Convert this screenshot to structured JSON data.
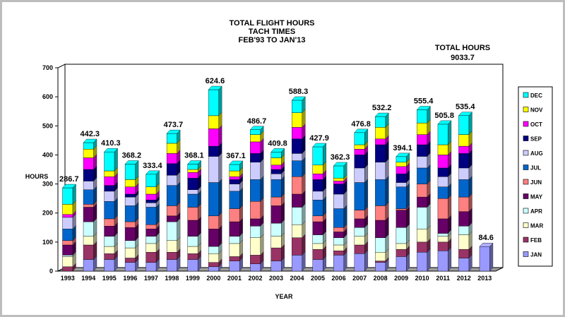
{
  "chart_data": {
    "type": "bar",
    "stacked": true,
    "title": [
      "TOTAL FLIGHT HOURS",
      "TACH TIMES",
      "FEB'93  TO JAN'13"
    ],
    "xlabel": "YEAR",
    "ylabel": "HOURS",
    "ylim": [
      0,
      700
    ],
    "yticks": [
      "0",
      "100",
      "200",
      "300",
      "400",
      "500",
      "600",
      "700"
    ],
    "grid": false,
    "legend_position": "right",
    "annotation": {
      "label": "TOTAL HOURS",
      "value": "9033.7"
    },
    "categories": [
      "1993",
      "1994",
      "1995",
      "1996",
      "1997",
      "1998",
      "1999",
      "2000",
      "2001",
      "2002",
      "2003",
      "2004",
      "2005",
      "2006",
      "2007",
      "2008",
      "2009",
      "2010",
      "2011",
      "2012",
      "2013"
    ],
    "totals": [
      "286.7",
      "442.3",
      "410.3",
      "368.2",
      "333.4",
      "473.7",
      "368.1",
      "624.6",
      "367.1",
      "486.7",
      "409.8",
      "588.3",
      "427.9",
      "362.3",
      "476.8",
      "532.2",
      "394.1",
      "555.4",
      "505.8",
      "535.4",
      "84.6"
    ],
    "series": [
      {
        "name": "JAN",
        "color": "#9999ff",
        "values": [
          0,
          40,
          40,
          30,
          30,
          40,
          40,
          15,
          35,
          25,
          35,
          55,
          40,
          55,
          60,
          30,
          50,
          65,
          70,
          45,
          84.6
        ]
      },
      {
        "name": "FEB",
        "color": "#993366",
        "values": [
          15,
          50,
          20,
          15,
          35,
          25,
          20,
          15,
          15,
          30,
          45,
          60,
          35,
          15,
          30,
          5,
          25,
          35,
          30,
          30,
          0
        ]
      },
      {
        "name": "MAR",
        "color": "#ffffcc",
        "values": [
          35,
          30,
          25,
          35,
          30,
          40,
          25,
          30,
          45,
          60,
          40,
          45,
          20,
          20,
          30,
          30,
          20,
          45,
          20,
          50,
          0
        ]
      },
      {
        "name": "APR",
        "color": "#ccffff",
        "values": [
          5,
          50,
          35,
          25,
          25,
          65,
          35,
          25,
          25,
          40,
          45,
          60,
          30,
          25,
          30,
          50,
          55,
          75,
          10,
          30,
          0
        ]
      },
      {
        "name": "MAY",
        "color": "#660066",
        "values": [
          35,
          50,
          35,
          45,
          25,
          20,
          55,
          60,
          50,
          25,
          60,
          45,
          45,
          20,
          30,
          60,
          60,
          35,
          50,
          50,
          0
        ]
      },
      {
        "name": "JUN",
        "color": "#ff8080",
        "values": [
          15,
          10,
          25,
          20,
          15,
          35,
          45,
          45,
          45,
          60,
          30,
          60,
          20,
          15,
          30,
          50,
          5,
          45,
          70,
          50,
          0
        ]
      },
      {
        "name": "JUL",
        "color": "#0066cc",
        "values": [
          40,
          50,
          60,
          55,
          60,
          70,
          45,
          115,
          60,
          75,
          60,
          55,
          55,
          65,
          95,
          90,
          75,
          55,
          40,
          60,
          0
        ]
      },
      {
        "name": "AUG",
        "color": "#ccccff",
        "values": [
          40,
          30,
          35,
          30,
          15,
          35,
          15,
          90,
          25,
          60,
          20,
          25,
          30,
          50,
          50,
          60,
          15,
          40,
          35,
          40,
          0
        ]
      },
      {
        "name": "SEP",
        "color": "#000080",
        "values": [
          0,
          40,
          20,
          10,
          10,
          40,
          40,
          35,
          15,
          30,
          15,
          50,
          40,
          35,
          45,
          60,
          30,
          40,
          30,
          50,
          0
        ]
      },
      {
        "name": "OCT",
        "color": "#ff00ff",
        "values": [
          10,
          40,
          30,
          25,
          20,
          35,
          20,
          60,
          10,
          40,
          15,
          40,
          20,
          10,
          20,
          20,
          25,
          35,
          45,
          25,
          0
        ]
      },
      {
        "name": "NOV",
        "color": "#ffff00",
        "values": [
          35,
          30,
          20,
          25,
          25,
          35,
          10,
          45,
          20,
          25,
          25,
          50,
          30,
          10,
          15,
          40,
          15,
          40,
          35,
          40,
          0
        ]
      },
      {
        "name": "DEC",
        "color": "#00ffff",
        "values": [
          56.7,
          22.3,
          65.3,
          53.2,
          43.4,
          33.7,
          18.1,
          89.6,
          22.1,
          16.7,
          19.8,
          43.3,
          62.9,
          42.3,
          41.8,
          37.2,
          19.1,
          45.4,
          70.8,
          65.4,
          0
        ]
      }
    ]
  }
}
